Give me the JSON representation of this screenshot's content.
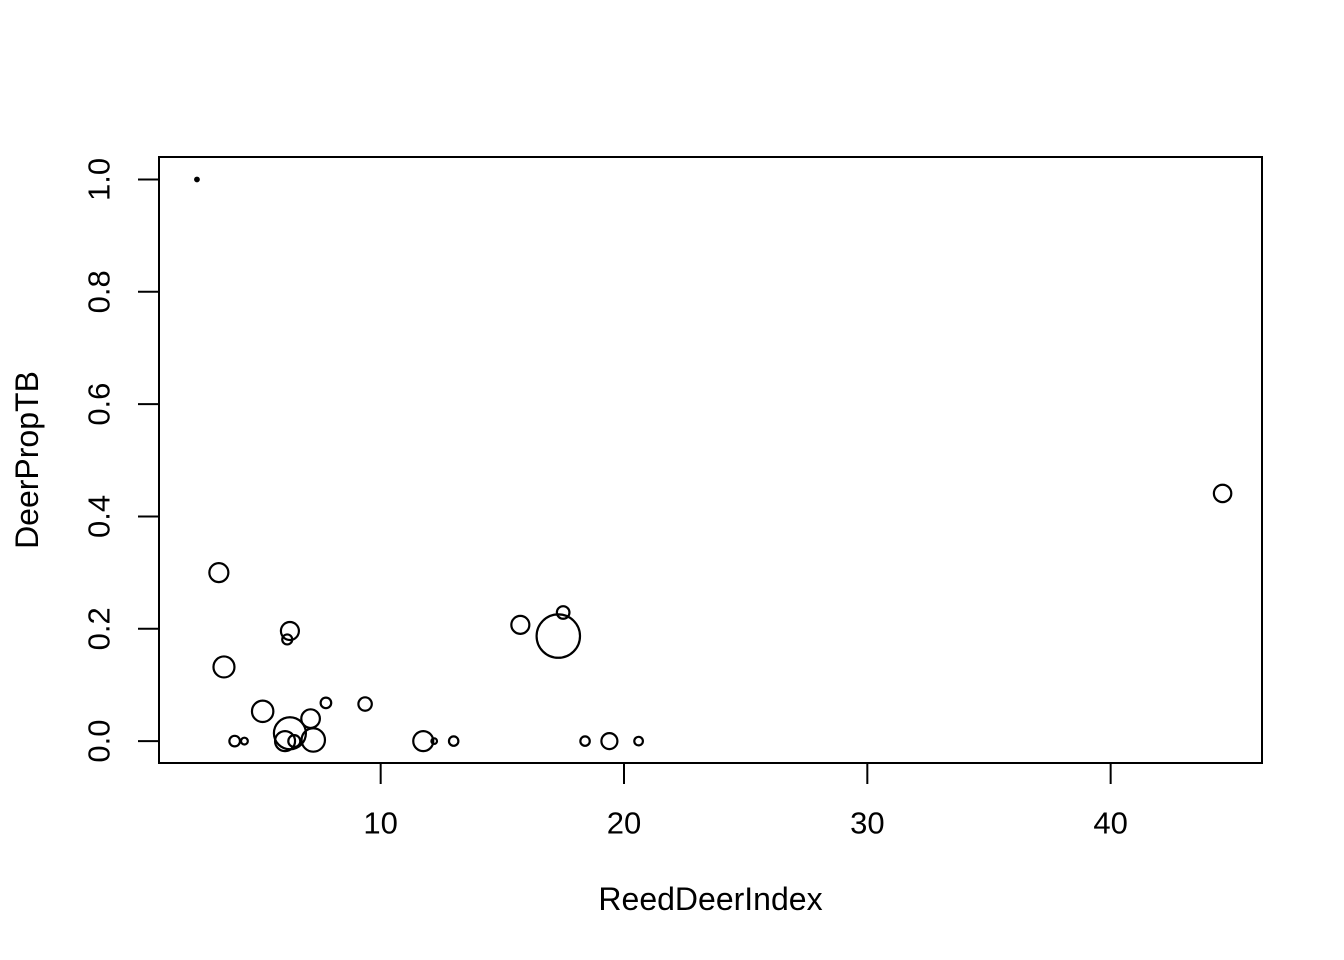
{
  "figure": {
    "background": "#ffffff",
    "stroke_color": "#000000"
  },
  "chart_data": {
    "type": "scatter",
    "subtype": "bubble",
    "title": "",
    "xlabel": "ReedDeerIndex",
    "ylabel": "DeerPropTB",
    "xlim": [
      0.89,
      46.22
    ],
    "ylim": [
      -0.039,
      1.04
    ],
    "x_ticks": [
      10,
      20,
      30,
      40
    ],
    "x_tick_labels": [
      "10",
      "20",
      "30",
      "40"
    ],
    "y_ticks": [
      0.0,
      0.2,
      0.4,
      0.6,
      0.8,
      1.0
    ],
    "y_tick_labels": [
      "0.0",
      "0.2",
      "0.4",
      "0.6",
      "0.8",
      "1.0"
    ],
    "grid": false,
    "legend": "none",
    "marker": "open-circle",
    "points": [
      {
        "x": 2.45,
        "y": 1.0,
        "r": 1.8,
        "dot": true
      },
      {
        "x": 3.35,
        "y": 0.3,
        "r": 9.5
      },
      {
        "x": 3.56,
        "y": 0.132,
        "r": 10.5
      },
      {
        "x": 4.0,
        "y": 0.0,
        "r": 5.3
      },
      {
        "x": 4.4,
        "y": 0.0,
        "r": 3.4
      },
      {
        "x": 5.15,
        "y": 0.053,
        "r": 10.7
      },
      {
        "x": 6.07,
        "y": 0.0,
        "r": 10.0
      },
      {
        "x": 6.16,
        "y": 0.181,
        "r": 5.0
      },
      {
        "x": 6.27,
        "y": 0.196,
        "r": 9.0
      },
      {
        "x": 6.27,
        "y": 0.014,
        "r": 16.0
      },
      {
        "x": 6.45,
        "y": 0.0,
        "r": 6.0
      },
      {
        "x": 7.12,
        "y": 0.04,
        "r": 9.3
      },
      {
        "x": 7.23,
        "y": 0.002,
        "r": 11.7
      },
      {
        "x": 7.75,
        "y": 0.068,
        "r": 5.3
      },
      {
        "x": 9.36,
        "y": 0.066,
        "r": 6.7
      },
      {
        "x": 11.75,
        "y": 0.0,
        "r": 10.0
      },
      {
        "x": 12.2,
        "y": 0.0,
        "r": 2.8
      },
      {
        "x": 13.0,
        "y": 0.0,
        "r": 4.7
      },
      {
        "x": 15.74,
        "y": 0.207,
        "r": 9.0
      },
      {
        "x": 17.3,
        "y": 0.187,
        "r": 21.7
      },
      {
        "x": 17.5,
        "y": 0.229,
        "r": 6.3
      },
      {
        "x": 18.4,
        "y": 0.0,
        "r": 4.7
      },
      {
        "x": 19.4,
        "y": 0.0,
        "r": 8.0
      },
      {
        "x": 20.6,
        "y": 0.0,
        "r": 4.3
      },
      {
        "x": 44.6,
        "y": 0.441,
        "r": 8.7
      }
    ]
  }
}
